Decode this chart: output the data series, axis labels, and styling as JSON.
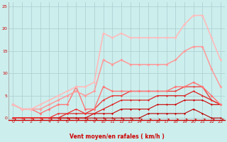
{
  "xlabel": "Vent moyen/en rafales ( km/h )",
  "bg_color": "#cceeed",
  "grid_color": "#aacccc",
  "xlim": [
    -0.5,
    23.5
  ],
  "ylim": [
    -0.5,
    26
  ],
  "xticks": [
    0,
    1,
    2,
    3,
    4,
    5,
    6,
    7,
    8,
    9,
    10,
    11,
    12,
    13,
    14,
    15,
    16,
    17,
    18,
    19,
    20,
    21,
    22,
    23
  ],
  "yticks": [
    0,
    5,
    10,
    15,
    20,
    25
  ],
  "lines": [
    {
      "x": [
        0,
        1,
        2,
        3,
        4,
        5,
        6,
        7,
        8,
        9,
        10,
        11,
        12,
        13,
        14,
        15,
        16,
        17,
        18,
        19,
        20,
        21,
        22,
        23
      ],
      "y": [
        0,
        0,
        0,
        0,
        0,
        0,
        0,
        0,
        0,
        0,
        0,
        0,
        0,
        0,
        0,
        1,
        1,
        1,
        1,
        1,
        2,
        1,
        0,
        0
      ],
      "color": "#bb0000",
      "lw": 0.8,
      "marker": "D",
      "ms": 1.5
    },
    {
      "x": [
        0,
        1,
        2,
        3,
        4,
        5,
        6,
        7,
        8,
        9,
        10,
        11,
        12,
        13,
        14,
        15,
        16,
        17,
        18,
        19,
        20,
        21,
        22,
        23
      ],
      "y": [
        0,
        0,
        0,
        0,
        0,
        0,
        0,
        0,
        0,
        1,
        1,
        1,
        2,
        2,
        2,
        2,
        3,
        3,
        3,
        4,
        4,
        4,
        3,
        3
      ],
      "color": "#cc0000",
      "lw": 0.8,
      "marker": "D",
      "ms": 1.5
    },
    {
      "x": [
        0,
        1,
        2,
        3,
        4,
        5,
        6,
        7,
        8,
        9,
        10,
        11,
        12,
        13,
        14,
        15,
        16,
        17,
        18,
        19,
        20,
        21,
        22,
        23
      ],
      "y": [
        0,
        0,
        0,
        0,
        0,
        0,
        1,
        1,
        1,
        1,
        2,
        3,
        4,
        4,
        4,
        4,
        5,
        5,
        5,
        5,
        6,
        5,
        4,
        3
      ],
      "color": "#dd2222",
      "lw": 0.9,
      "marker": "D",
      "ms": 1.5
    },
    {
      "x": [
        0,
        1,
        2,
        3,
        4,
        5,
        6,
        7,
        8,
        9,
        10,
        11,
        12,
        13,
        14,
        15,
        16,
        17,
        18,
        19,
        20,
        21,
        22,
        23
      ],
      "y": [
        0,
        0,
        0,
        0,
        0,
        1,
        1,
        2,
        1,
        2,
        4,
        5,
        5,
        6,
        6,
        6,
        6,
        6,
        6,
        7,
        7,
        7,
        4,
        3
      ],
      "color": "#ee3333",
      "lw": 0.9,
      "marker": "D",
      "ms": 1.5
    },
    {
      "x": [
        0,
        1,
        2,
        3,
        4,
        5,
        6,
        7,
        8,
        9,
        10,
        11,
        12,
        13,
        14,
        15,
        16,
        17,
        18,
        19,
        20,
        21,
        22,
        23
      ],
      "y": [
        3,
        2,
        2,
        1,
        2,
        3,
        3,
        7,
        2,
        2,
        7,
        6,
        6,
        6,
        6,
        6,
        6,
        6,
        7,
        7,
        8,
        7,
        5,
        3
      ],
      "color": "#ff7777",
      "lw": 1.0,
      "marker": "D",
      "ms": 2.0
    },
    {
      "x": [
        0,
        1,
        2,
        3,
        4,
        5,
        6,
        7,
        8,
        9,
        10,
        11,
        12,
        13,
        14,
        15,
        16,
        17,
        18,
        19,
        20,
        21,
        22,
        23
      ],
      "y": [
        3,
        2,
        2,
        2,
        3,
        4,
        5,
        6,
        5,
        6,
        13,
        12,
        13,
        12,
        12,
        12,
        12,
        12,
        13,
        15,
        16,
        16,
        11,
        7
      ],
      "color": "#ff9999",
      "lw": 1.1,
      "marker": "D",
      "ms": 2.0
    },
    {
      "x": [
        0,
        1,
        2,
        3,
        4,
        5,
        6,
        7,
        8,
        9,
        10,
        11,
        12,
        13,
        14,
        15,
        16,
        17,
        18,
        19,
        20,
        21,
        22,
        23
      ],
      "y": [
        3,
        2,
        2,
        3,
        4,
        5,
        6,
        7,
        7,
        8,
        19,
        18,
        19,
        18,
        18,
        18,
        18,
        18,
        18,
        21,
        23,
        23,
        18,
        13
      ],
      "color": "#ffbbbb",
      "lw": 1.2,
      "marker": "D",
      "ms": 2.0
    }
  ],
  "arrow_color": "#cc0000"
}
